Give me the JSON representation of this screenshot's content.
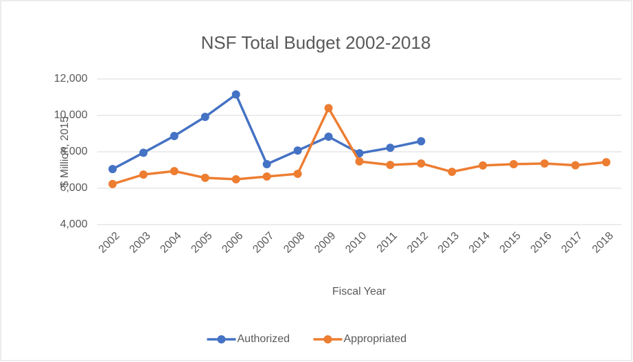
{
  "chart_data": {
    "type": "line",
    "title": "NSF Total Budget 2002-2018",
    "x_label": "Fiscal Year",
    "y_label": "$ Million, 2015",
    "categories": [
      "2002",
      "2003",
      "2004",
      "2005",
      "2006",
      "2007",
      "2008",
      "2009",
      "2010",
      "2011",
      "2012",
      "2013",
      "2014",
      "2015",
      "2016",
      "2017",
      "2018"
    ],
    "series": [
      {
        "name": "Authorized",
        "color": "#4472c4",
        "values": [
          7050,
          7950,
          8870,
          9920,
          11150,
          7320,
          8070,
          8830,
          7920,
          8220,
          8580,
          null,
          null,
          null,
          null,
          null,
          null
        ]
      },
      {
        "name": "Appropriated",
        "color": "#ed7d31",
        "values": [
          6230,
          6750,
          6940,
          6570,
          6490,
          6640,
          6790,
          10400,
          7470,
          7280,
          7360,
          6900,
          7250,
          7320,
          7360,
          7260,
          7430
        ]
      }
    ],
    "ylim": [
      4000,
      12000
    ],
    "yticks": [
      {
        "value": 4000,
        "label": "4,000"
      },
      {
        "value": 6000,
        "label": "6,000"
      },
      {
        "value": 8000,
        "label": "8,000"
      },
      {
        "value": 10000,
        "label": "10,000"
      },
      {
        "value": 12000,
        "label": "12,000"
      }
    ],
    "grid": true,
    "legend": "bottom"
  }
}
